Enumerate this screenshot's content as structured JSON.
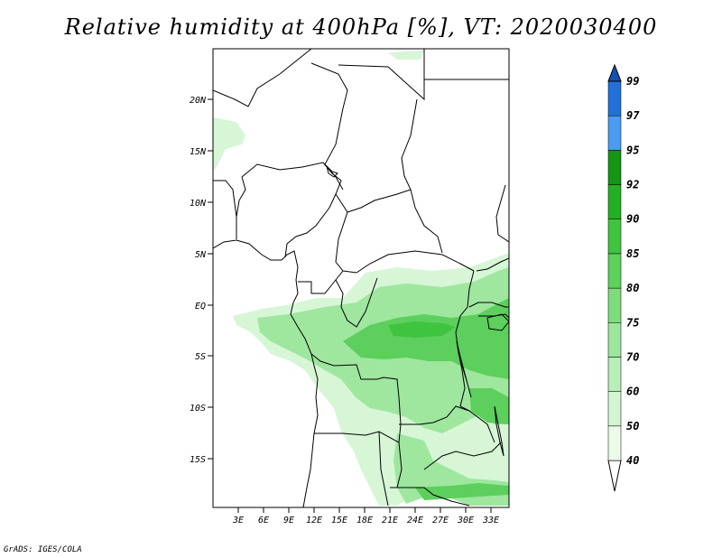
{
  "title": "Relative humidity at 400hPa [%], VT: 2020030400",
  "credit": "GrADS: IGES/COLA",
  "map": {
    "lat_ticks": [
      "20N",
      "15N",
      "10N",
      "5N",
      "EQ",
      "5S",
      "10S",
      "15S"
    ],
    "lon_ticks": [
      "3E",
      "6E",
      "9E",
      "12E",
      "15E",
      "18E",
      "21E",
      "24E",
      "27E",
      "30E",
      "33E"
    ]
  },
  "colorbar": {
    "levels": [
      "40",
      "50",
      "60",
      "70",
      "75",
      "80",
      "85",
      "90",
      "92",
      "95",
      "97",
      "99"
    ],
    "colors": [
      "#ffffff",
      "#eafbea",
      "#d2f5d2",
      "#b8eeb8",
      "#9de69d",
      "#7ddd7d",
      "#5cd25c",
      "#3fc43f",
      "#24b024",
      "#149614",
      "#4a9cf0",
      "#2370d8",
      "#1450b4"
    ]
  },
  "colors": {
    "border": "#000000",
    "rh_light": "#d6f6d6",
    "rh_mid": "#9fe69f",
    "rh_dark": "#5ccf5c"
  }
}
